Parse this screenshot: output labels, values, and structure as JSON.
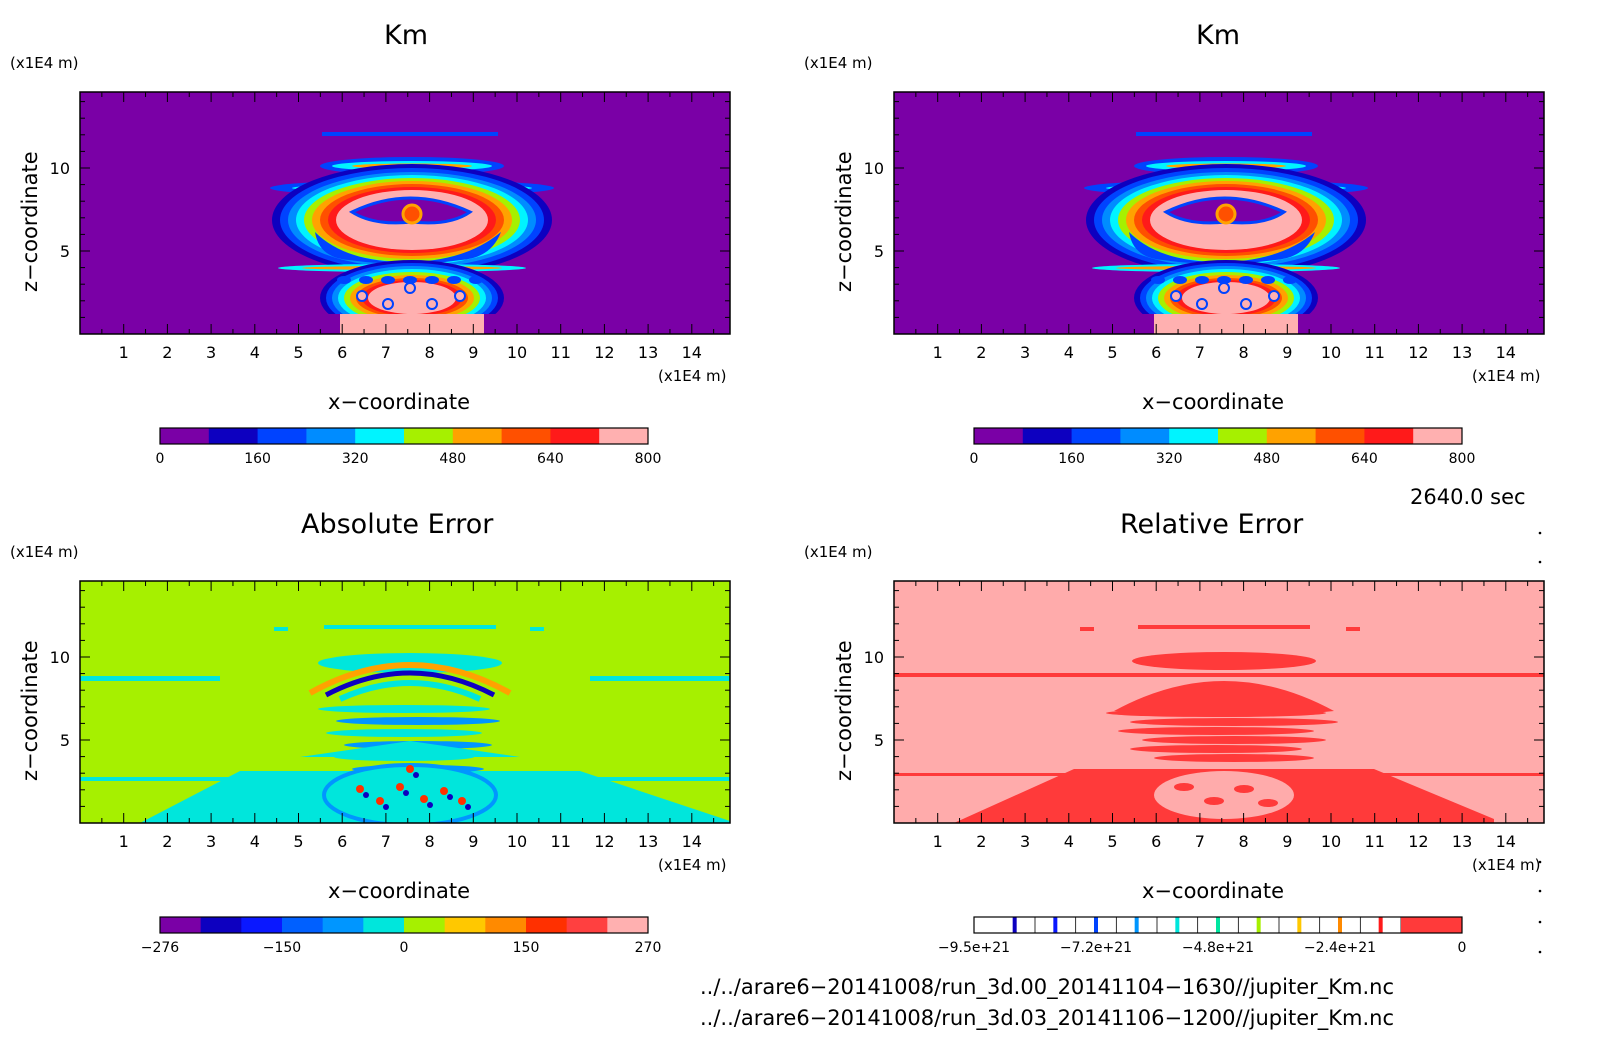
{
  "panels": [
    {
      "title": "Km",
      "z_unit": "(x1E4 m)",
      "x_unit": "(x1E4 m)",
      "xlabel": "x−coordinate",
      "ylabel": "z−coordinate",
      "x_ticks": [
        "1",
        "2",
        "3",
        "4",
        "5",
        "6",
        "7",
        "8",
        "9",
        "10",
        "11",
        "12",
        "13",
        "14"
      ],
      "z_ticks": [
        "5",
        "10"
      ],
      "background": "#7a00a6",
      "colorbar": {
        "colors": [
          "#7a00a6",
          "#0d00c0",
          "#0043ff",
          "#008cff",
          "#00f4ff",
          "#a6f000",
          "#ffa200",
          "#ff5000",
          "#ff1a1a",
          "#ffb0b0"
        ],
        "labels": [
          "0",
          "160",
          "320",
          "480",
          "640",
          "800"
        ]
      }
    },
    {
      "title": "Km",
      "z_unit": "(x1E4 m)",
      "x_unit": "(x1E4 m)",
      "xlabel": "x−coordinate",
      "ylabel": "z−coordinate",
      "x_ticks": [
        "1",
        "2",
        "3",
        "4",
        "5",
        "6",
        "7",
        "8",
        "9",
        "10",
        "11",
        "12",
        "13",
        "14"
      ],
      "z_ticks": [
        "5",
        "10"
      ],
      "background": "#7a00a6",
      "colorbar": {
        "colors": [
          "#7a00a6",
          "#0d00c0",
          "#0043ff",
          "#008cff",
          "#00f4ff",
          "#a6f000",
          "#ffa200",
          "#ff5000",
          "#ff1a1a",
          "#ffb0b0"
        ],
        "labels": [
          "0",
          "160",
          "320",
          "480",
          "640",
          "800"
        ]
      }
    },
    {
      "title": "Absolute Error",
      "z_unit": "(x1E4 m)",
      "x_unit": "(x1E4 m)",
      "xlabel": "x−coordinate",
      "ylabel": "z−coordinate",
      "x_ticks": [
        "1",
        "2",
        "3",
        "4",
        "5",
        "6",
        "7",
        "8",
        "9",
        "10",
        "11",
        "12",
        "13",
        "14"
      ],
      "z_ticks": [
        "5",
        "10"
      ],
      "background": "#a6f000",
      "colorbar": {
        "colors": [
          "#7a00a6",
          "#0d00c0",
          "#0a18ff",
          "#0060ff",
          "#0096ff",
          "#00e6dc",
          "#a6f000",
          "#ffc800",
          "#ff8a00",
          "#ff3000",
          "#ff4040",
          "#ffb0b0"
        ],
        "labels": [
          "−276",
          "−150",
          "0",
          "150",
          "270"
        ]
      }
    },
    {
      "title": "Relative Error",
      "z_unit": "(x1E4 m)",
      "x_unit": "(x1E4 m)",
      "xlabel": "x−coordinate",
      "ylabel": "z−coordinate",
      "x_ticks": [
        "1",
        "2",
        "3",
        "4",
        "5",
        "6",
        "7",
        "8",
        "9",
        "10",
        "11",
        "12",
        "13",
        "14"
      ],
      "z_ticks": [
        "5",
        "10"
      ],
      "background": "#ffabab",
      "colorbar": {
        "stripe_colors": [
          "#0d00c0",
          "#0a18ff",
          "#0043ff",
          "#0096ff",
          "#00e6dc",
          "#00e6a0",
          "#a6f000",
          "#ffc800",
          "#ff8a00",
          "#ff1a1a"
        ],
        "end_color": "#ff3a3a",
        "labels": [
          "−9.5e+21",
          "−7.2e+21",
          "−4.8e+21",
          "−2.4e+21",
          "0"
        ]
      }
    }
  ],
  "time_label": "2640.0 sec",
  "file_paths": [
    "../../arare6−20141008/run_3d.00_20141104−1630//jupiter_Km.nc",
    "../../arare6−20141008/run_3d.03_20141106−1200//jupiter_Km.nc"
  ],
  "chart_data": [
    {
      "type": "heatmap",
      "title": "Km",
      "xlabel": "x−coordinate",
      "ylabel": "z−coordinate",
      "x_unit": "(x1E4 m)",
      "z_unit": "(x1E4 m)",
      "xlim": [
        0,
        15
      ],
      "zlim": [
        0,
        14.5
      ],
      "color_levels": [
        0,
        80,
        160,
        240,
        320,
        400,
        480,
        560,
        640,
        720,
        800
      ]
    },
    {
      "type": "heatmap",
      "title": "Km",
      "xlabel": "x−coordinate",
      "ylabel": "z−coordinate",
      "x_unit": "(x1E4 m)",
      "z_unit": "(x1E4 m)",
      "xlim": [
        0,
        15
      ],
      "zlim": [
        0,
        14.5
      ],
      "color_levels": [
        0,
        80,
        160,
        240,
        320,
        400,
        480,
        560,
        640,
        720,
        800
      ]
    },
    {
      "type": "heatmap",
      "title": "Absolute Error",
      "xlabel": "x−coordinate",
      "ylabel": "z−coordinate",
      "x_unit": "(x1E4 m)",
      "z_unit": "(x1E4 m)",
      "xlim": [
        0,
        15
      ],
      "zlim": [
        0,
        14.5
      ],
      "colorbar_ticks": [
        -276,
        -150,
        0,
        150,
        270
      ]
    },
    {
      "type": "heatmap",
      "title": "Relative Error",
      "xlabel": "x−coordinate",
      "ylabel": "z−coordinate",
      "x_unit": "(x1E4 m)",
      "z_unit": "(x1E4 m)",
      "xlim": [
        0,
        15
      ],
      "zlim": [
        0,
        14.5
      ],
      "colorbar_ticks": [
        "-9.5e+21",
        "-7.2e+21",
        "-4.8e+21",
        "-2.4e+21",
        "0"
      ]
    }
  ]
}
